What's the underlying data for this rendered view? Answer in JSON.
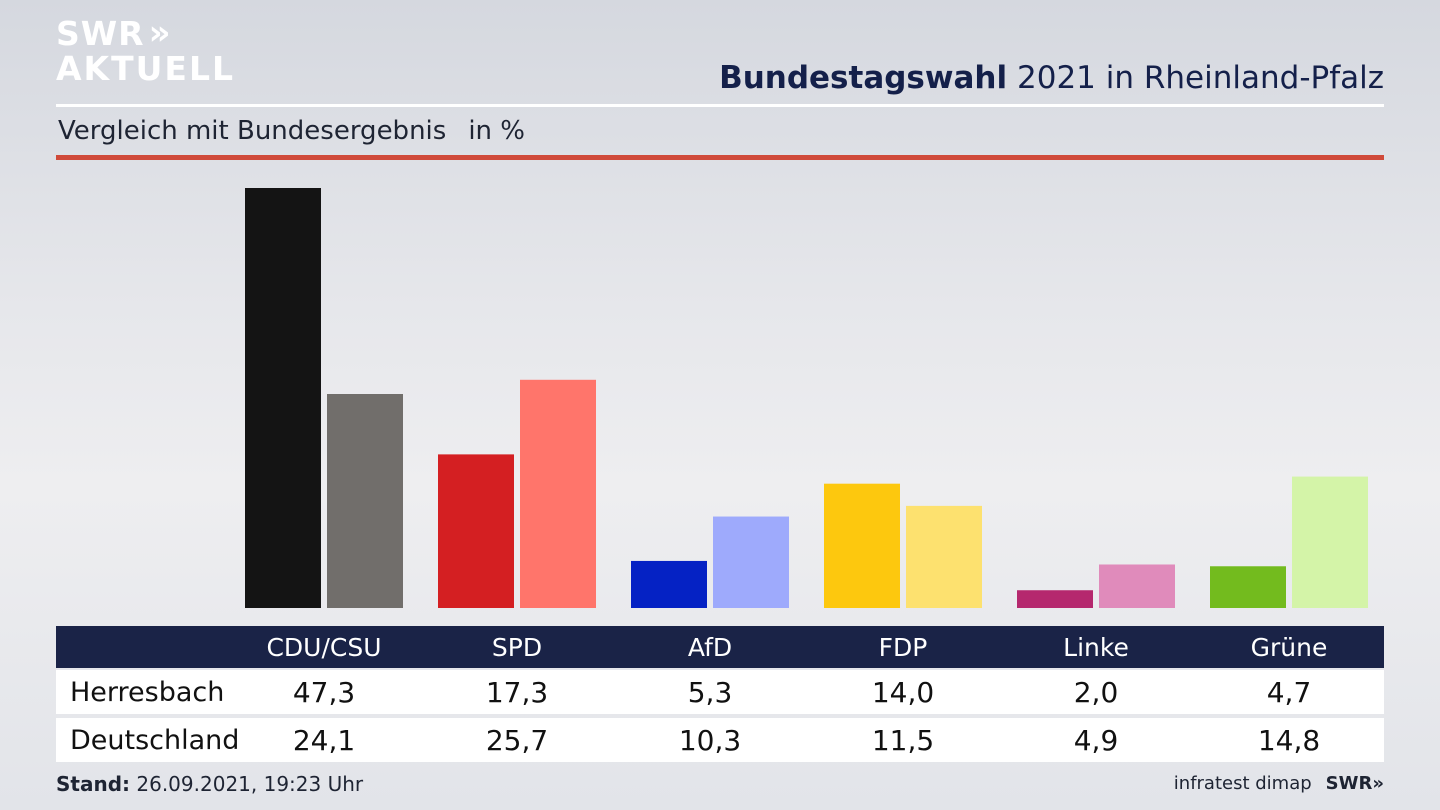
{
  "logo": {
    "line1": "SWR",
    "line1_chevrons": "»",
    "line2": "AKTUELL"
  },
  "title": {
    "bold": "Bundestagswahl",
    "rest": "2021 in Rheinland-Pfalz"
  },
  "subtitle": {
    "text": "Vergleich mit Bundesergebnis",
    "unit": "in %"
  },
  "chart_data": {
    "type": "bar",
    "categories": [
      "CDU/CSU",
      "SPD",
      "AfD",
      "FDP",
      "Linke",
      "Grüne"
    ],
    "series": [
      {
        "name": "Herresbach",
        "values": [
          47.3,
          17.3,
          5.3,
          14.0,
          2.0,
          4.7
        ],
        "values_text": [
          "47,3",
          "17,3",
          "5,3",
          "14,0",
          "2,0",
          "4,7"
        ]
      },
      {
        "name": "Deutschland",
        "values": [
          24.1,
          25.7,
          10.3,
          11.5,
          4.9,
          14.8
        ],
        "values_text": [
          "24,1",
          "25,7",
          "10,3",
          "11,5",
          "4,9",
          "14,8"
        ]
      }
    ],
    "colors_primary": [
      "#141414",
      "#d41f22",
      "#0522c4",
      "#fdc80e",
      "#b5286e",
      "#73bb1e"
    ],
    "colors_secondary": [
      "#716e6b",
      "#ff756b",
      "#9eaafc",
      "#fde16f",
      "#e08bbb",
      "#d4f4a8"
    ],
    "ylim": [
      0,
      47.3
    ],
    "grid": false,
    "legend": "table below chart"
  },
  "footer": {
    "stand_label": "Stand:",
    "stand_value": "26.09.2021, 19:23 Uhr",
    "source": "infratest dimap",
    "brand": "SWR",
    "brand_chevrons": "»"
  }
}
